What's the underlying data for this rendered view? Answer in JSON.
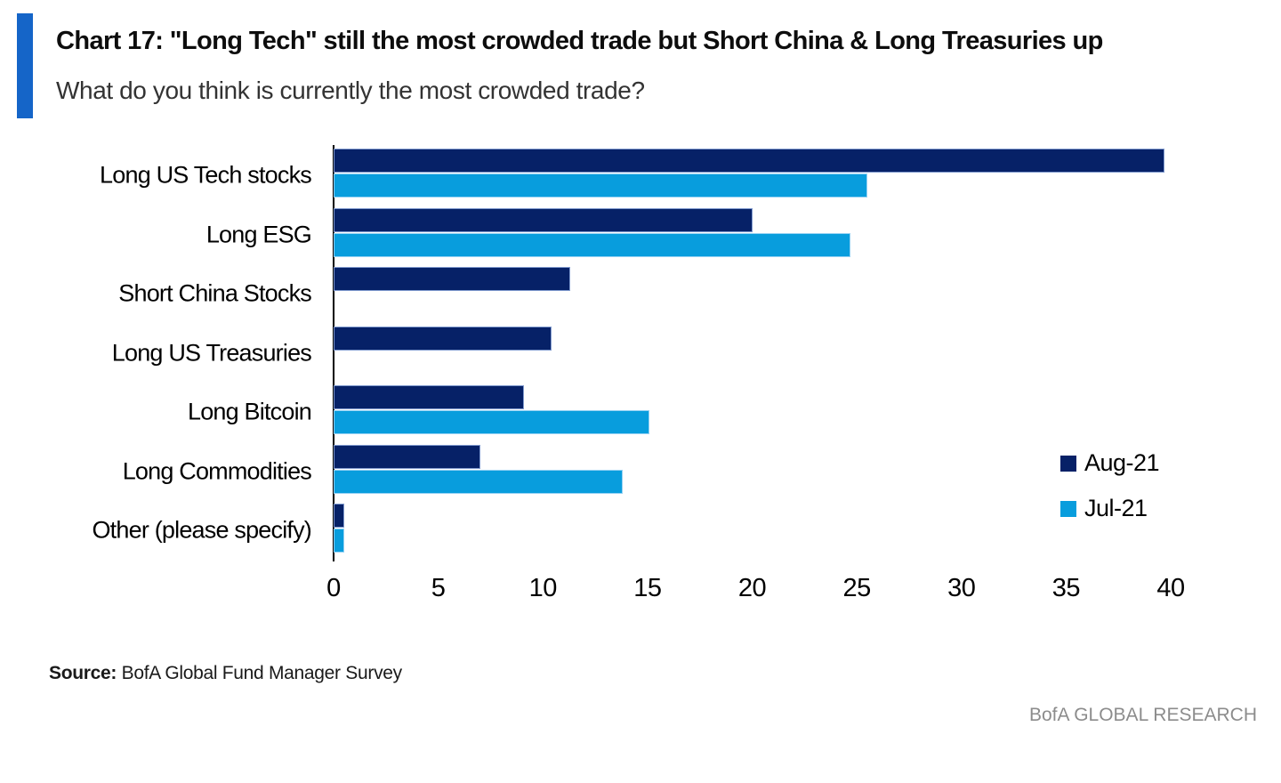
{
  "header": {
    "title": "Chart 17: \"Long Tech\" still the most crowded trade but Short China & Long Treasuries up",
    "subtitle": "What do you think is currently the most crowded trade?"
  },
  "accent_color": "#1565c8",
  "chart_data": {
    "type": "bar",
    "orientation": "horizontal",
    "title": "Chart 17: \"Long Tech\" still the most crowded trade but Short China & Long Treasuries up",
    "subtitle": "What do you think is currently the most crowded trade?",
    "categories": [
      "Long US Tech stocks",
      "Long ESG",
      "Short China Stocks",
      "Long US Treasuries",
      "Long Bitcoin",
      "Long Commodities",
      "Other (please specify)"
    ],
    "series": [
      {
        "name": "Aug-21",
        "color": "#062167",
        "values": [
          39.7,
          20,
          11.3,
          10.4,
          9.1,
          7,
          0.5
        ]
      },
      {
        "name": "Jul-21",
        "color": "#089ddd",
        "values": [
          25.5,
          24.7,
          null,
          null,
          15.1,
          13.8,
          0.5
        ]
      }
    ],
    "xlabel": "",
    "ylabel": "",
    "xlim": [
      0,
      40
    ],
    "x_ticks": [
      0,
      5,
      10,
      15,
      20,
      25,
      30,
      35,
      40
    ],
    "grid": false,
    "legend_position": "right-middle"
  },
  "footer": {
    "source_label": "Source:",
    "source_text": " BofA Global Fund Manager Survey",
    "brand": "BofA GLOBAL RESEARCH"
  }
}
